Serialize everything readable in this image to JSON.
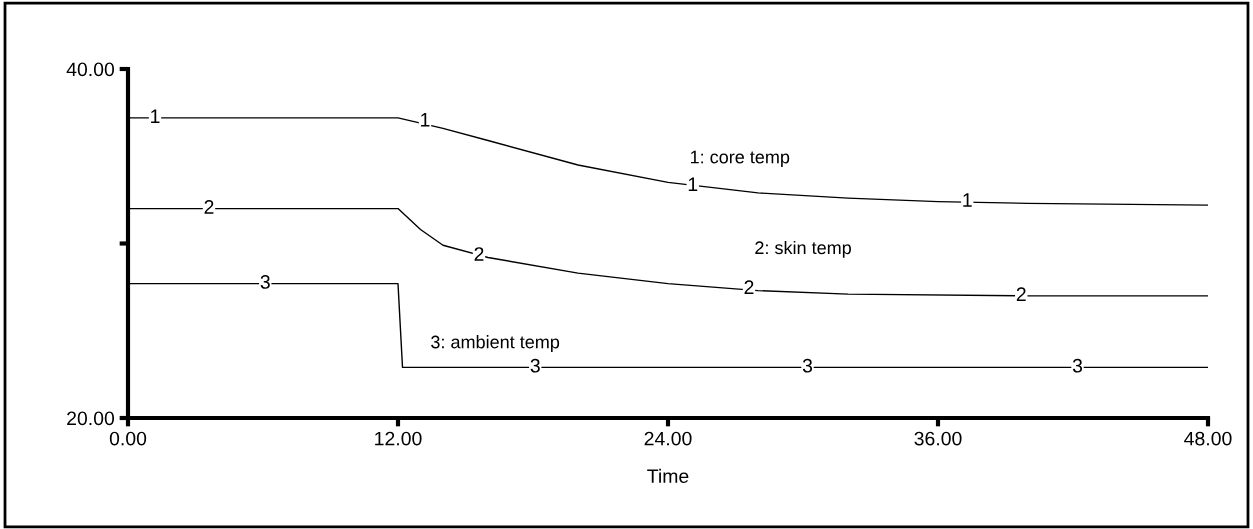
{
  "chart_data": {
    "type": "line",
    "xlabel": "Time",
    "xlim": [
      0,
      48
    ],
    "ylim": [
      20,
      40
    ],
    "xticks": [
      {
        "value": 0,
        "label": "0.00"
      },
      {
        "value": 12,
        "label": "12.00"
      },
      {
        "value": 24,
        "label": "24.00"
      },
      {
        "value": 36,
        "label": "36.00"
      },
      {
        "value": 48,
        "label": "48.00"
      }
    ],
    "yticks": [
      {
        "value": 20,
        "label": "20.00"
      },
      {
        "value": 30,
        "label": null
      },
      {
        "value": 40,
        "label": "40.00"
      }
    ],
    "grid": false,
    "legend": false,
    "marker": "none",
    "line_style": "solid",
    "series": [
      {
        "name": "1: core temp",
        "color": "#000000",
        "x": [
          0,
          12,
          14,
          16,
          20,
          24,
          28,
          32,
          36,
          40,
          48
        ],
        "values": [
          37.2,
          37.2,
          36.6,
          35.9,
          34.5,
          33.5,
          32.9,
          32.6,
          32.4,
          32.3,
          32.2
        ]
      },
      {
        "name": "2: skin temp",
        "color": "#000000",
        "x": [
          0,
          12,
          13,
          14,
          16,
          20,
          24,
          28,
          32,
          40,
          48
        ],
        "values": [
          32.0,
          32.0,
          30.8,
          29.9,
          29.2,
          28.3,
          27.7,
          27.3,
          27.1,
          27.0,
          27.0
        ]
      },
      {
        "name": "3: ambient temp",
        "color": "#000000",
        "x": [
          0,
          12,
          12.2,
          48
        ],
        "values": [
          27.7,
          27.7,
          22.9,
          22.9
        ]
      }
    ],
    "annotations": [
      {
        "text": "1",
        "x": 1.2,
        "y": 37.2
      },
      {
        "text": "1",
        "x": 13.2,
        "y": 37.0
      },
      {
        "text": "1",
        "x": 25.1,
        "y": 33.3
      },
      {
        "text": "1",
        "x": 37.3,
        "y": 32.4
      },
      {
        "text": "2",
        "x": 3.6,
        "y": 32.0
      },
      {
        "text": "2",
        "x": 15.6,
        "y": 29.3
      },
      {
        "text": "2",
        "x": 27.6,
        "y": 27.4
      },
      {
        "text": "2",
        "x": 39.7,
        "y": 27.0
      },
      {
        "text": "3",
        "x": 6.1,
        "y": 27.7
      },
      {
        "text": "3",
        "x": 18.1,
        "y": 22.9
      },
      {
        "text": "3",
        "x": 30.2,
        "y": 22.9
      },
      {
        "text": "3",
        "x": 42.2,
        "y": 22.9
      }
    ]
  }
}
